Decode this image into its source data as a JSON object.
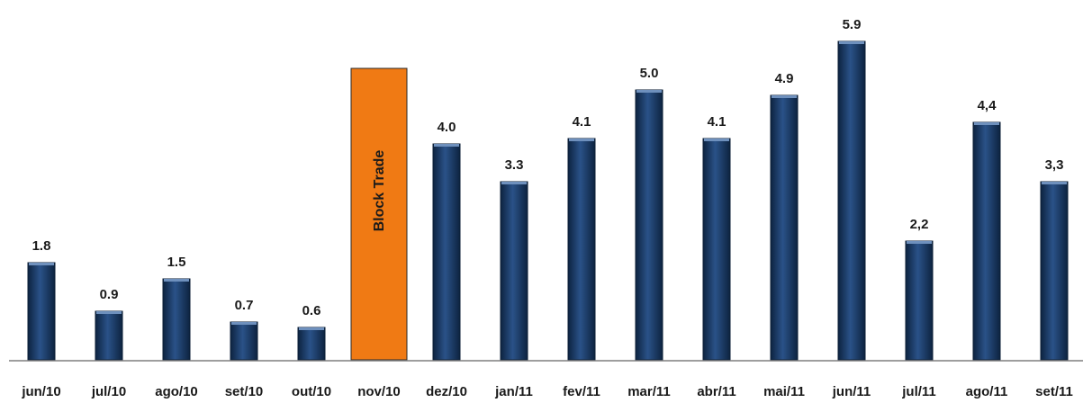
{
  "chart_data": {
    "type": "bar",
    "categories": [
      "jun/10",
      "jul/10",
      "ago/10",
      "set/10",
      "out/10",
      "nov/10",
      "dez/10",
      "jan/11",
      "fev/11",
      "mar/11",
      "abr/11",
      "mai/11",
      "jun/11",
      "jul/11",
      "ago/11",
      "set/11"
    ],
    "values": [
      1.8,
      0.9,
      1.5,
      0.7,
      0.6,
      5.4,
      4.0,
      3.3,
      4.1,
      5.0,
      4.1,
      4.9,
      5.9,
      2.2,
      4.4,
      3.3
    ],
    "value_labels": [
      "1.8",
      "0.9",
      "1.5",
      "0.7",
      "0.6",
      "",
      "4.0",
      "3.3",
      "4.1",
      "5.0",
      "4.1",
      "4.9",
      "5.9",
      "2,2",
      "4,4",
      "3,3"
    ],
    "highlight": {
      "index": 5,
      "label": "Block Trade",
      "color": "#f07a14"
    },
    "bar_color": "#17375e",
    "ylim": [
      0,
      6.2
    ],
    "grid": false,
    "title": "",
    "xlabel": "",
    "ylabel": ""
  }
}
